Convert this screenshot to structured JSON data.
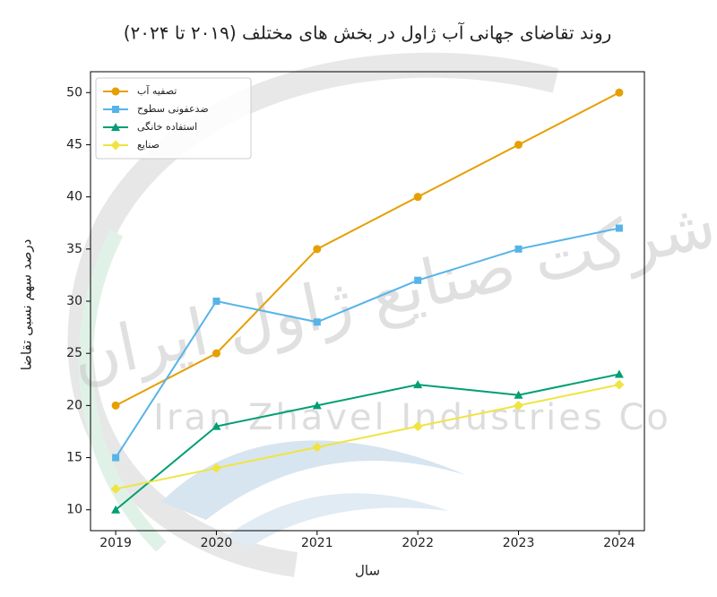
{
  "chart_data": {
    "type": "line",
    "title": "روند تقاضای جهانی آب ژاول در بخش های مختلف (۲۰۱۹ تا ۲۰۲۴)",
    "x_label": "سال",
    "y_label": "درصد سهم نسبی تقاضا",
    "x": [
      2019,
      2020,
      2021,
      2022,
      2023,
      2024
    ],
    "series": [
      {
        "name": "تصفیه آب",
        "color": "#E69F00",
        "marker": "circle",
        "values": [
          20,
          25,
          35,
          40,
          45,
          50
        ]
      },
      {
        "name": "ضدعفونی سطوح",
        "color": "#56B4E9",
        "marker": "square",
        "values": [
          15,
          30,
          28,
          32,
          35,
          37
        ]
      },
      {
        "name": "استفاده خانگی",
        "color": "#009E73",
        "marker": "triangle",
        "values": [
          10,
          18,
          20,
          22,
          21,
          23
        ]
      },
      {
        "name": "صنایع",
        "color": "#F0E442",
        "marker": "diamond",
        "values": [
          12,
          14,
          16,
          18,
          20,
          22
        ]
      }
    ],
    "xlim": [
      2018.75,
      2024.25
    ],
    "xticks": [
      2019,
      2020,
      2021,
      2022,
      2023,
      2024
    ],
    "ylim": [
      8,
      52
    ],
    "yticks": [
      10,
      15,
      20,
      25,
      30,
      35,
      40,
      45,
      50
    ],
    "grid": false,
    "legend": "upper-left",
    "watermark": [
      "شرکت صنایع ژاول ایران",
      "Iran Zhavel Industries Co"
    ]
  }
}
